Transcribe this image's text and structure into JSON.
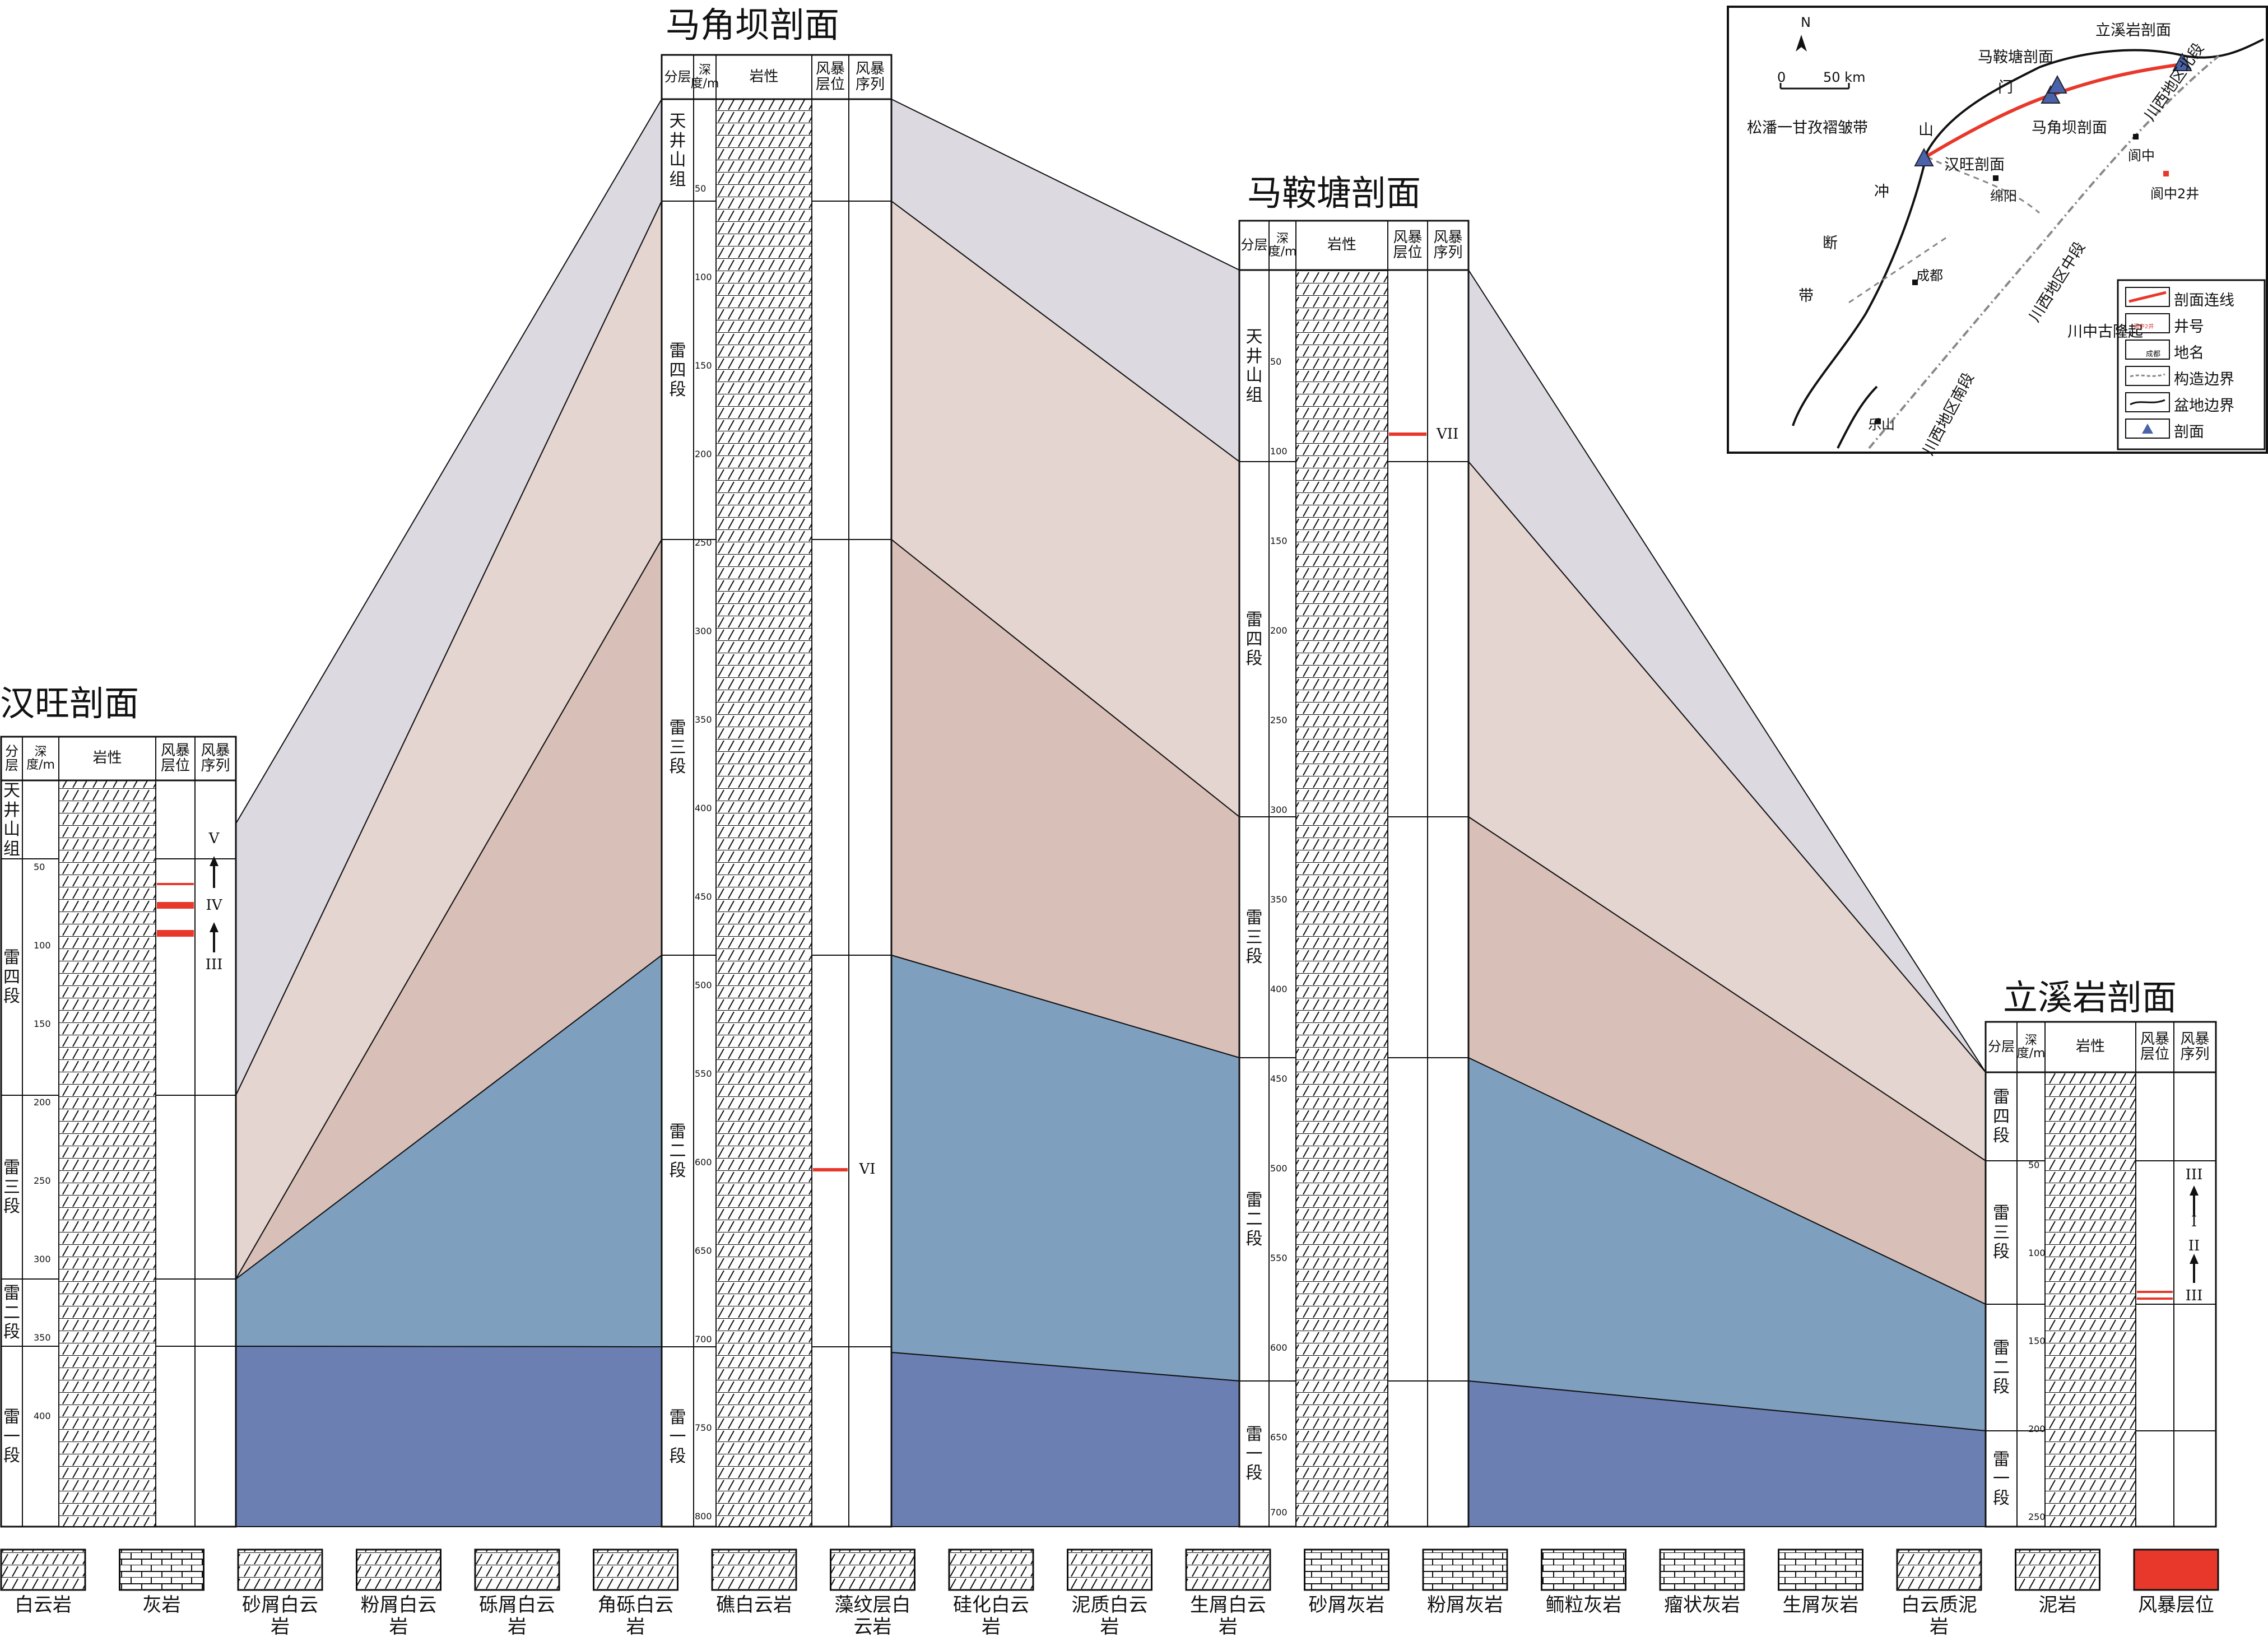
{
  "sections": {
    "hanwang": {
      "title": "汉旺剖面"
    },
    "majiaoba": {
      "title": "马角坝剖面"
    },
    "maantang": {
      "title": "马鞍塘剖面"
    },
    "lixiyan": {
      "title": "立溪岩剖面"
    }
  },
  "column_headers": {
    "layer": "分层",
    "depth": "深度/m",
    "lithology": "岩性",
    "storm_horizon": "风暴层位",
    "storm_sequence": "风暴序列"
  },
  "units": {
    "tianjingshan": "天井山组",
    "lei4": "雷四段",
    "lei3": "雷三段",
    "lei2": "雷二段",
    "lei1": "雷一段"
  },
  "depth_ticks": {
    "hanwang": [
      "50",
      "100",
      "150",
      "200",
      "250",
      "300",
      "350",
      "400"
    ],
    "majiaoba": [
      "50",
      "100",
      "150",
      "200",
      "250",
      "300",
      "350",
      "400",
      "450",
      "500",
      "550",
      "600",
      "650",
      "700",
      "750",
      "800"
    ],
    "maantang": [
      "50",
      "100",
      "150",
      "200",
      "250",
      "300",
      "350",
      "400",
      "450",
      "500",
      "550",
      "600",
      "650",
      "700"
    ],
    "lixiyan": [
      "50",
      "100",
      "150",
      "200",
      "250"
    ]
  },
  "storm_markers": {
    "hanwang": [
      "V",
      "IV",
      "III"
    ],
    "majiaoba": [
      "VI"
    ],
    "maantang": [
      "VII"
    ],
    "lixiyan": [
      "III",
      "I",
      "II",
      "III"
    ]
  },
  "unit_colors": {
    "top": "#dcd9e1",
    "lei4": "#e4d5d0",
    "lei3": "#d8c0b8",
    "lei2": "#7ea0be",
    "lei1": "#6b7fb3",
    "storm": "#e8382b"
  },
  "legend": [
    {
      "label": "白云岩",
      "pattern": "dolomite"
    },
    {
      "label": "灰岩",
      "pattern": "limestone"
    },
    {
      "label": "砂屑白云岩",
      "pattern": "sand-dolomite"
    },
    {
      "label": "粉屑白云岩",
      "pattern": "silt-dolomite"
    },
    {
      "label": "砾屑白云岩",
      "pattern": "gravel-dolomite"
    },
    {
      "label": "角砾白云岩",
      "pattern": "breccia-dolomite"
    },
    {
      "label": "礁白云岩",
      "pattern": "reef-dolomite"
    },
    {
      "label": "藻纹层白云岩",
      "pattern": "algal-dolomite"
    },
    {
      "label": "硅化白云岩",
      "pattern": "silicified-dolomite"
    },
    {
      "label": "泥质白云岩",
      "pattern": "argillaceous-dolomite"
    },
    {
      "label": "生屑白云岩",
      "pattern": "bioclastic-dolomite"
    },
    {
      "label": "砂屑灰岩",
      "pattern": "sand-limestone"
    },
    {
      "label": "粉屑灰岩",
      "pattern": "silt-limestone"
    },
    {
      "label": "鲕粒灰岩",
      "pattern": "oolitic-limestone"
    },
    {
      "label": "瘤状灰岩",
      "pattern": "nodular-limestone"
    },
    {
      "label": "生屑灰岩",
      "pattern": "bioclastic-limestone"
    },
    {
      "label": "白云质泥岩",
      "pattern": "dolomitic-mudstone"
    },
    {
      "label": "泥岩",
      "pattern": "mudstone"
    },
    {
      "label": "风暴层位",
      "pattern": "storm"
    }
  ],
  "map": {
    "north": "N",
    "scale_zero": "0",
    "scale_end": "50 km",
    "places": {
      "lixiyan": "立溪岩剖面",
      "maantang": "马鞍塘剖面",
      "majiaoba": "马角坝剖面",
      "hanwang": "汉旺剖面",
      "songpan": "松潘一甘孜褶皱带",
      "men": "门",
      "shan": "山",
      "chong": "冲",
      "duan": "断",
      "dai": "带",
      "langzhong": "阆中",
      "langzhong2": "阆中2井",
      "mianyang": "绵阳",
      "chengdu": "成都",
      "leshan": "乐山",
      "uplift": "川中古隆起",
      "north_seg": "川西地区北段",
      "mid_seg": "川西地区中段",
      "south_seg": "川西地区南段"
    },
    "legend": {
      "line": "剖面连线",
      "well": "井号",
      "placename": "地名",
      "tectonic": "构造边界",
      "basin": "盆地边界",
      "section": "剖面"
    },
    "legend_samples": {
      "well": "阆中2井",
      "placename": "成都"
    }
  }
}
